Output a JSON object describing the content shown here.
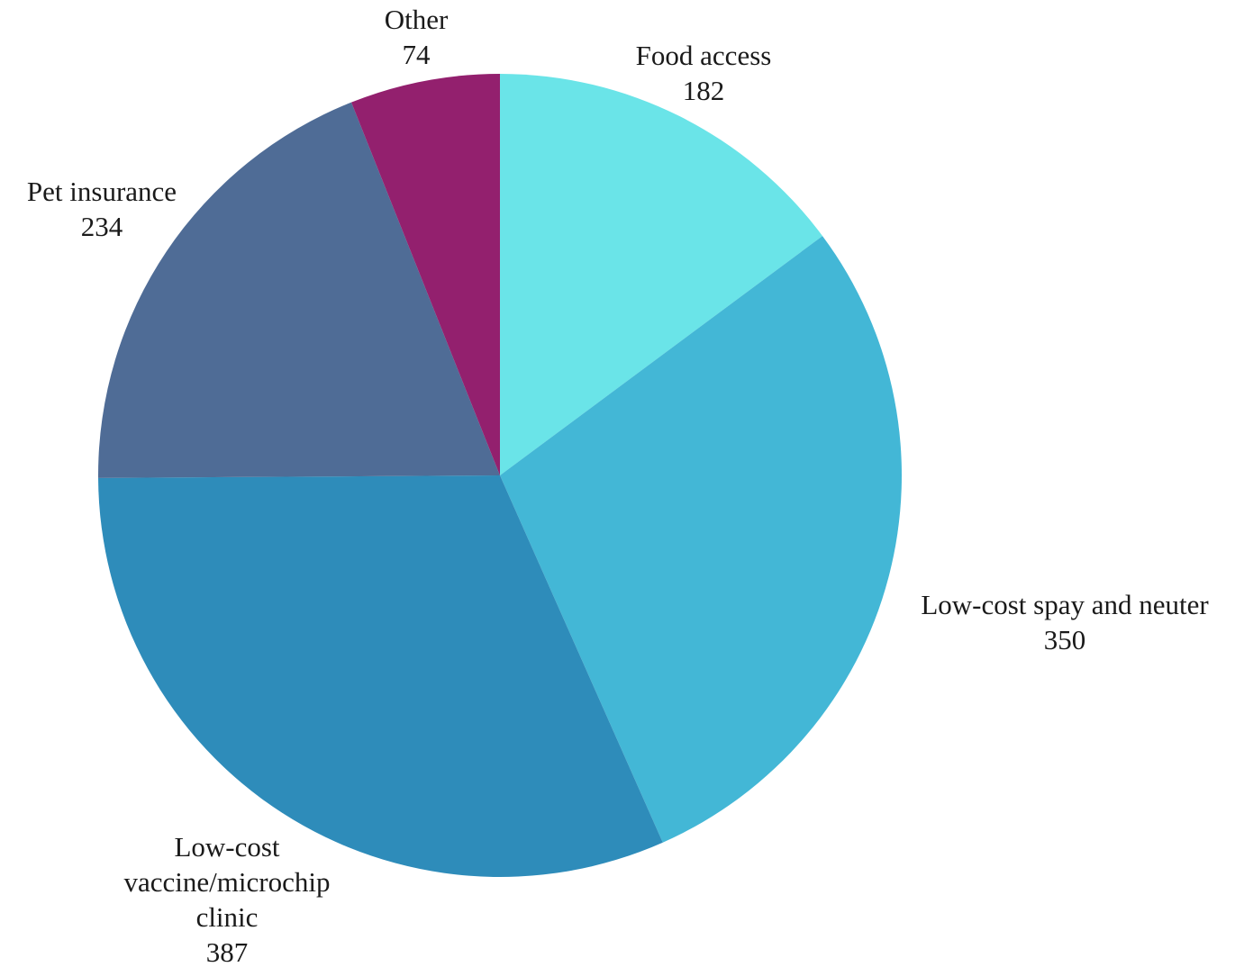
{
  "chart_data": {
    "type": "pie",
    "title": "",
    "categories": [
      "Food access",
      "Low-cost spay and neuter",
      "Low-cost vaccine/microchip clinic",
      "Pet insurance",
      "Other"
    ],
    "values": [
      182,
      350,
      387,
      234,
      74
    ],
    "colors": [
      "#6ae4e8",
      "#43b7d6",
      "#2e8cba",
      "#4f6c96",
      "#93206e"
    ],
    "labels": [
      {
        "lines": [
          "Food access"
        ],
        "value": "182"
      },
      {
        "lines": [
          "Low-cost spay and neuter"
        ],
        "value": "350"
      },
      {
        "lines": [
          "Low-cost",
          "vaccine/microchip",
          "clinic"
        ],
        "value": "387"
      },
      {
        "lines": [
          "Pet insurance"
        ],
        "value": "234"
      },
      {
        "lines": [
          "Other"
        ],
        "value": "74"
      }
    ],
    "start_angle": "12 o'clock",
    "direction": "clockwise",
    "legend": "none"
  }
}
